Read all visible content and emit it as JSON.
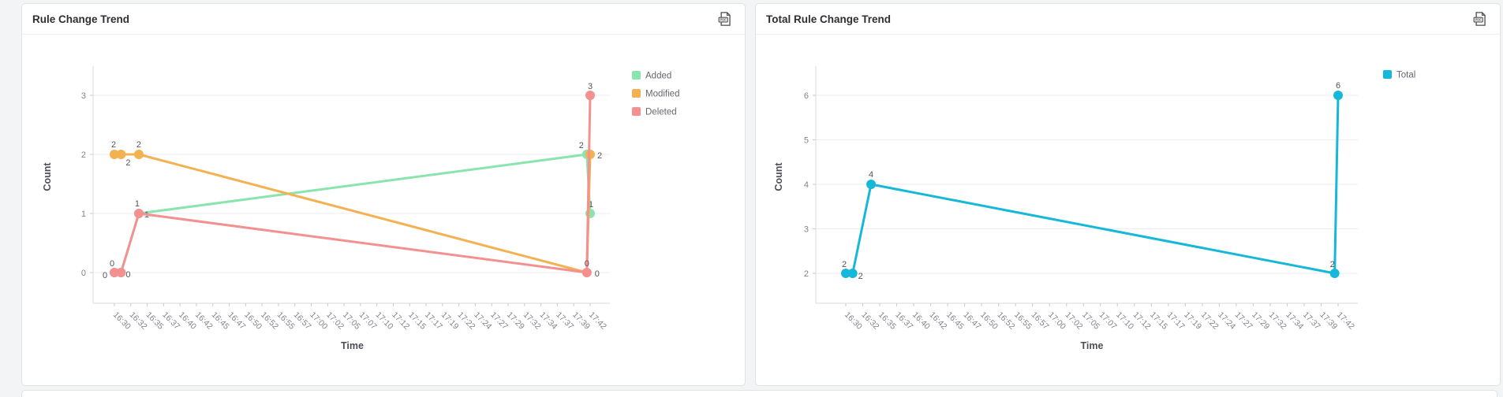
{
  "page": {
    "background": "#f3f4f6"
  },
  "cards": [
    {
      "title": "Rule Change Trend",
      "export_icon": "pdf-file-icon"
    },
    {
      "title": "Total Rule Change Trend",
      "export_icon": "pdf-file-icon"
    }
  ],
  "chart_data": [
    {
      "type": "line",
      "title": "Rule Change Trend",
      "xlabel": "Time",
      "ylabel": "Count",
      "grid": "horizontal",
      "legend_position": "top-right",
      "x_range_minutes": 72,
      "x_tick_labels": [
        "16:30",
        "16:32",
        "16:35",
        "16:37",
        "16:40",
        "16:42",
        "16:45",
        "16:47",
        "16:50",
        "16:52",
        "16:55",
        "16:57",
        "17:00",
        "17:02",
        "17:05",
        "17:07",
        "17:10",
        "17:12",
        "17:15",
        "17:17",
        "17:19",
        "17:22",
        "17:24",
        "17:27",
        "17:29",
        "17:32",
        "17:34",
        "17:37",
        "17:39",
        "17:42"
      ],
      "y_ticks": [
        0,
        1,
        2,
        3
      ],
      "ylim": [
        0,
        3.5
      ],
      "legend": [
        {
          "name": "Added",
          "color": "#8ae4ae"
        },
        {
          "name": "Modified",
          "color": "#f4b152"
        },
        {
          "name": "Deleted",
          "color": "#f2918f"
        }
      ],
      "series": [
        {
          "name": "Added",
          "color": "#8ae4ae",
          "points": [
            {
              "t": 0,
              "v": 0,
              "label": "0",
              "dx": -12,
              "dy": 7
            },
            {
              "t": 1,
              "v": 0
            },
            {
              "t": 3.7,
              "v": 1,
              "label": "1",
              "dx": 10,
              "dy": 5
            },
            {
              "t": 71.5,
              "v": 2,
              "label": "2",
              "dx": -7,
              "dy": -8
            },
            {
              "t": 72,
              "v": 1,
              "label": "1",
              "dx": 1,
              "dy": -8
            }
          ]
        },
        {
          "name": "Modified",
          "color": "#f4b152",
          "points": [
            {
              "t": 0,
              "v": 2,
              "label": "2",
              "dx": -1,
              "dy": -9
            },
            {
              "t": 1,
              "v": 2,
              "label": "2",
              "dx": 9,
              "dy": 14
            },
            {
              "t": 3.7,
              "v": 2,
              "label": "2",
              "dx": 0,
              "dy": -9
            },
            {
              "t": 71.5,
              "v": 0,
              "label": "0",
              "dx": 13,
              "dy": 5
            },
            {
              "t": 72,
              "v": 2,
              "label": "2",
              "dx": 12,
              "dy": 5
            }
          ]
        },
        {
          "name": "Deleted",
          "color": "#f2918f",
          "points": [
            {
              "t": 0,
              "v": 0,
              "label": "0",
              "dx": -3,
              "dy": -8
            },
            {
              "t": 1,
              "v": 0,
              "label": "0",
              "dx": 9,
              "dy": 6
            },
            {
              "t": 3.7,
              "v": 1,
              "label": "1",
              "dx": -2,
              "dy": -9
            },
            {
              "t": 71.5,
              "v": 0,
              "label": "0",
              "dx": 0,
              "dy": -8
            },
            {
              "t": 72,
              "v": 3,
              "label": "3",
              "dx": 0,
              "dy": -8
            }
          ]
        }
      ]
    },
    {
      "type": "line",
      "title": "Total Rule Change Trend",
      "xlabel": "Time",
      "ylabel": "Count",
      "grid": "horizontal",
      "legend_position": "top-right",
      "x_range_minutes": 72,
      "x_tick_labels": [
        "16:30",
        "16:32",
        "16:35",
        "16:37",
        "16:40",
        "16:42",
        "16:45",
        "16:47",
        "16:50",
        "16:52",
        "16:55",
        "16:57",
        "17:00",
        "17:02",
        "17:05",
        "17:07",
        "17:10",
        "17:12",
        "17:15",
        "17:17",
        "17:19",
        "17:22",
        "17:24",
        "17:27",
        "17:29",
        "17:32",
        "17:34",
        "17:37",
        "17:39",
        "17:42"
      ],
      "y_ticks": [
        2,
        3,
        4,
        5,
        6
      ],
      "ylim": [
        2,
        6.5
      ],
      "legend": [
        {
          "name": "Total",
          "color": "#16b8d9"
        }
      ],
      "series": [
        {
          "name": "Total",
          "color": "#16b8d9",
          "points": [
            {
              "t": 0,
              "v": 2,
              "label": "2",
              "dx": -2,
              "dy": -8
            },
            {
              "t": 1,
              "v": 2,
              "label": "2",
              "dx": 10,
              "dy": 7
            },
            {
              "t": 3.7,
              "v": 4,
              "label": "4",
              "dx": 0,
              "dy": -9
            },
            {
              "t": 71.5,
              "v": 2,
              "label": "2",
              "dx": -3,
              "dy": -8
            },
            {
              "t": 72,
              "v": 6,
              "label": "6",
              "dx": 0,
              "dy": -9
            }
          ]
        }
      ]
    }
  ]
}
